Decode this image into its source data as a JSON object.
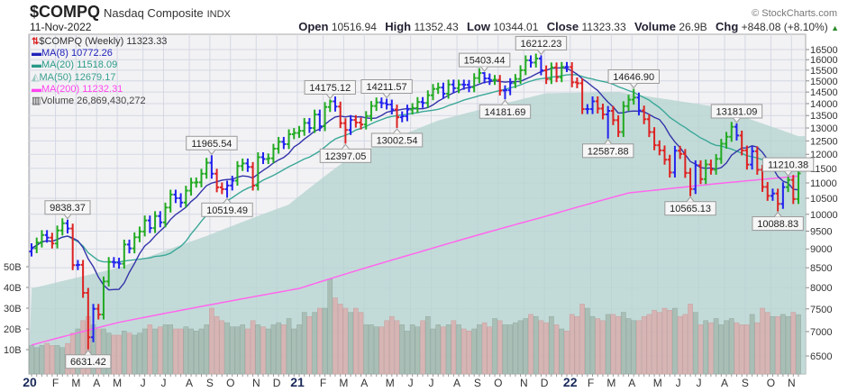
{
  "header": {
    "symbol": "$COMPQ",
    "name": "Nasdaq Composite",
    "exchange": "INDX",
    "date": "11-Nov-2022",
    "brand": "© StockCharts.com",
    "stats": {
      "open_label": "Open",
      "open": "10516.94",
      "high_label": "High",
      "high": "11352.43",
      "low_label": "Low",
      "low": "10344.01",
      "close_label": "Close",
      "close": "11323.33",
      "volume_label": "Volume",
      "volume": "26.9B",
      "chg_label": "Chg",
      "chg": "+848.08 (+8.10%)"
    }
  },
  "legend": {
    "price": "$COMPQ (Weekly) 11323.33",
    "ma8": "MA(8) 10772.26",
    "ma20": "MA(20) 11518.09",
    "ma50": "MA(50) 12679.17",
    "ma200": "MA(200) 11232.31",
    "volume": "Volume 26,869,430,272"
  },
  "colors": {
    "up_bar": "#22aa22",
    "down_bar": "#dd2222",
    "neutral_bar": "#2222ee",
    "ma8": "#3333aa",
    "ma20": "#3aa898",
    "ma50_fill": "#b3d3cf",
    "ma200": "#ff66ee",
    "vol_up": "#a7bcb3",
    "vol_down": "#d9b1b1",
    "plot_bg": "#f2f2f4",
    "grid": "#d5d8e4"
  },
  "chart_data": {
    "type": "ohlc-bar",
    "interval": "weekly",
    "first_week": "2020-01-03",
    "last_week": "2022-11-11",
    "y_scale": "log",
    "ylim": [
      6400,
      16900
    ],
    "y_ticks": [
      16500,
      16000,
      15500,
      15000,
      14500,
      14000,
      13500,
      13000,
      12500,
      12000,
      11500,
      11000,
      10500,
      10000,
      9500,
      9000,
      8500,
      8000,
      7500,
      7000,
      6500
    ],
    "volume_ticks": [
      "50B",
      "40B",
      "30B",
      "20B",
      "10B"
    ],
    "volume_tick_values": [
      50,
      40,
      30,
      20,
      10
    ],
    "x_tick_labels": [
      "20",
      "F",
      "M",
      "A",
      "M",
      "J",
      "J",
      "A",
      "S",
      "O",
      "N",
      "D",
      "21",
      "F",
      "M",
      "A",
      "M",
      "J",
      "J",
      "A",
      "S",
      "O",
      "N",
      "D",
      "22",
      "F",
      "M",
      "A",
      "M",
      "J",
      "J",
      "A",
      "S",
      "O",
      "N"
    ],
    "grid": true,
    "close": [
      9020,
      9178,
      9388,
      9314,
      9150,
      9520,
      9731,
      9576,
      8567,
      8575,
      7875,
      6880,
      7502,
      7373,
      8153,
      8650,
      8634,
      8605,
      9121,
      9015,
      9325,
      9490,
      9815,
      9589,
      9946,
      9757,
      10207,
      10617,
      10503,
      10363,
      10745,
      11011,
      11019,
      11312,
      11696,
      11313,
      10854,
      10794,
      10914,
      11075,
      11580,
      11672,
      11548,
      10912,
      11895,
      11829,
      11855,
      12206,
      12464,
      12378,
      12756,
      12805,
      12888,
      13202,
      12998,
      13543,
      13071,
      13856,
      14095,
      13874,
      13192,
      12920,
      13320,
      13215,
      13138,
      13480,
      13900,
      14052,
      14016,
      13962,
      13752,
      13430,
      13471,
      13749,
      13814,
      14069,
      14030,
      14360,
      14639,
      14701,
      14427,
      14837,
      14673,
      14835,
      14823,
      14714,
      15129,
      15363,
      15115,
      15044,
      15048,
      14567,
      14580,
      14897,
      15090,
      15498,
      15971,
      15860,
      16057,
      15491,
      15085,
      15630,
      15169,
      15653,
      15645,
      14936,
      14894,
      13768,
      13770,
      14098,
      13791,
      13548,
      13694,
      13313,
      12843,
      13893,
      14169,
      14261,
      13711,
      13351,
      12839,
      12335,
      12145,
      11805,
      11354,
      12131,
      12013,
      11340,
      10798,
      11608,
      11128,
      11635,
      11452,
      11834,
      12391,
      12657,
      13047,
      12705,
      12142,
      11631,
      12112,
      11448,
      10868,
      10576,
      10652,
      10321,
      10860,
      11102,
      10475,
      11323.33
    ],
    "volume_billions": [
      12,
      11,
      12,
      13,
      12,
      12,
      11,
      13,
      18,
      20,
      24,
      26,
      22,
      20,
      20,
      18,
      17,
      17,
      19,
      18,
      17,
      18,
      20,
      22,
      20,
      21,
      22,
      22,
      20,
      20,
      21,
      20,
      19,
      20,
      22,
      30,
      26,
      24,
      23,
      21,
      21,
      22,
      20,
      24,
      22,
      21,
      20,
      22,
      23,
      22,
      25,
      20,
      22,
      28,
      26,
      28,
      30,
      30,
      44,
      35,
      32,
      30,
      28,
      30,
      28,
      22,
      22,
      21,
      21,
      24,
      26,
      24,
      22,
      19,
      22,
      21,
      24,
      26,
      20,
      22,
      21,
      22,
      24,
      22,
      20,
      19,
      20,
      22,
      23,
      21,
      25,
      24,
      22,
      22,
      23,
      24,
      25,
      27,
      26,
      24,
      23,
      26,
      22,
      20,
      19,
      27,
      26,
      32,
      30,
      26,
      25,
      24,
      27,
      27,
      26,
      28,
      25,
      24,
      24,
      26,
      27,
      29,
      28,
      30,
      29,
      30,
      26,
      27,
      32,
      28,
      22,
      24,
      23,
      25,
      22,
      24,
      25,
      23,
      22,
      22,
      27,
      23,
      30,
      28,
      26,
      26,
      27,
      26,
      28,
      26.9
    ],
    "ma50_points": [
      [
        "2020-01-03",
        7980
      ],
      [
        "2020-05-01",
        8500
      ],
      [
        "2020-08-28",
        9360
      ],
      [
        "2020-12-18",
        10300
      ],
      [
        "2021-03-12",
        11900
      ],
      [
        "2021-07-09",
        13300
      ],
      [
        "2021-12-03",
        14450
      ],
      [
        "2022-03-11",
        14500
      ],
      [
        "2022-07-15",
        13900
      ],
      [
        "2022-11-11",
        12679.17
      ]
    ],
    "ma200_points": [
      [
        "2020-01-03",
        6720
      ],
      [
        "2020-05-01",
        7200
      ],
      [
        "2021-01-01",
        7980
      ],
      [
        "2021-06-11",
        8900
      ],
      [
        "2021-11-26",
        9900
      ],
      [
        "2022-03-25",
        10670
      ],
      [
        "2022-07-29",
        10990
      ],
      [
        "2022-11-11",
        11232.31
      ]
    ],
    "annotations": [
      {
        "week": "2020-02-21",
        "text": "9838.37",
        "value": 9838.37,
        "kind": "high"
      },
      {
        "week": "2020-03-20",
        "text": "6631.42",
        "value": 6631.42,
        "kind": "low"
      },
      {
        "week": "2020-09-04",
        "text": "11965.54",
        "value": 11965.54,
        "kind": "high"
      },
      {
        "week": "2020-09-25",
        "text": "10519.49",
        "value": 10519.49,
        "kind": "low"
      },
      {
        "week": "2021-02-12",
        "text": "14175.12",
        "value": 14175.12,
        "kind": "high"
      },
      {
        "week": "2021-03-05",
        "text": "12397.05",
        "value": 12397.05,
        "kind": "low"
      },
      {
        "week": "2021-04-30",
        "text": "14211.57",
        "value": 14211.57,
        "kind": "high"
      },
      {
        "week": "2021-05-14",
        "text": "13002.54",
        "value": 13002.54,
        "kind": "low"
      },
      {
        "week": "2021-09-10",
        "text": "15403.44",
        "value": 15403.44,
        "kind": "high"
      },
      {
        "week": "2021-10-08",
        "text": "14181.69",
        "value": 14181.69,
        "kind": "low"
      },
      {
        "week": "2021-11-26",
        "text": "16212.23",
        "value": 16212.23,
        "kind": "high"
      },
      {
        "week": "2022-02-25",
        "text": "12587.88",
        "value": 12587.88,
        "kind": "low"
      },
      {
        "week": "2022-04-01",
        "text": "14646.90",
        "value": 14646.9,
        "kind": "high"
      },
      {
        "week": "2022-06-17",
        "text": "10565.13",
        "value": 10565.13,
        "kind": "low"
      },
      {
        "week": "2022-08-19",
        "text": "13181.09",
        "value": 13181.09,
        "kind": "high"
      },
      {
        "week": "2022-10-14",
        "text": "10088.83",
        "value": 10088.83,
        "kind": "low"
      },
      {
        "week": "2022-10-28",
        "text": "11210.38",
        "value": 11210.38,
        "kind": "high"
      }
    ]
  }
}
